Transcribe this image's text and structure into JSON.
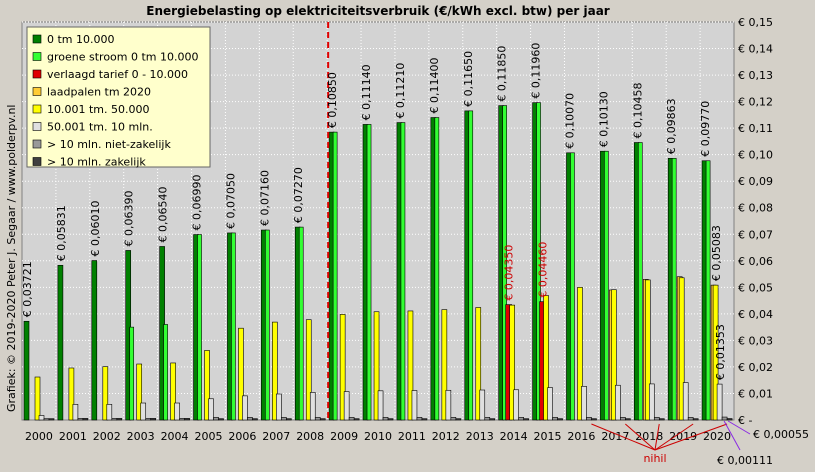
{
  "chart_data": {
    "type": "bar",
    "title": "Energiebelasting  op elektriciteitsverbruik  (€/kWh excl. btw) per jaar",
    "credit": "Grafiek:  © 2019-2020  Peter J. Segaar / www.polderpv.nl",
    "categories": [
      "2000",
      "2001",
      "2002",
      "2003",
      "2004",
      "2005",
      "2006",
      "2007",
      "2008",
      "2009",
      "2010",
      "2011",
      "2012",
      "2013",
      "2014",
      "2015",
      "2016",
      "2017",
      "2018",
      "2019",
      "2020"
    ],
    "y_ticks": [
      "€ -",
      "€ 0,01",
      "€ 0,02",
      "€ 0,03",
      "€ 0,04",
      "€ 0,05",
      "€ 0,06",
      "€ 0,07",
      "€ 0,08",
      "€ 0,09",
      "€ 0,10",
      "€ 0,11",
      "€ 0,12",
      "€ 0,13",
      "€ 0,14",
      "€ 0,15"
    ],
    "ylim": [
      0,
      0.15
    ],
    "grid": true,
    "legend_position": "top-left",
    "marker_year": "2008",
    "series": [
      {
        "name": "0 tm 10.000",
        "color": "#008000",
        "values": [
          0.03721,
          0.05831,
          0.0601,
          0.0639,
          0.0654,
          0.0699,
          0.0705,
          0.0716,
          0.0727,
          0.1085,
          0.1114,
          0.1121,
          0.114,
          0.1165,
          0.1185,
          0.1196,
          0.1007,
          0.1013,
          0.10458,
          0.09863,
          0.0977
        ]
      },
      {
        "name": "groene stroom 0 tm 10.000",
        "color": "#33ff33",
        "values": [
          null,
          null,
          null,
          0.035,
          0.036,
          0.0699,
          0.0705,
          0.0716,
          0.0727,
          0.1085,
          0.1114,
          0.1121,
          0.114,
          0.1165,
          0.1185,
          0.1196,
          0.1007,
          0.1013,
          0.10458,
          0.09863,
          0.0977
        ]
      },
      {
        "name": "verlaagd tarief 0 - 10.000",
        "color": "#e00000",
        "values": [
          null,
          null,
          null,
          null,
          null,
          null,
          null,
          null,
          null,
          null,
          null,
          null,
          null,
          null,
          0.0435,
          0.0446,
          null,
          null,
          null,
          null,
          null
        ]
      },
      {
        "name": "laadpalen tm 2020",
        "color": "#ffcc33",
        "values": [
          null,
          null,
          null,
          null,
          null,
          null,
          null,
          null,
          null,
          null,
          null,
          null,
          null,
          null,
          null,
          null,
          null,
          0.049,
          0.053,
          0.054,
          0.05083
        ]
      },
      {
        "name": "10.001 tm. 50.000",
        "color": "#ffff00",
        "values": [
          0.0162,
          0.0196,
          0.0201,
          0.0211,
          0.0215,
          0.0262,
          0.0346,
          0.0369,
          0.0378,
          0.0398,
          0.0408,
          0.0411,
          0.0416,
          0.0424,
          0.0433,
          0.0469,
          0.05,
          0.0491,
          0.0528,
          0.0536,
          0.05083
        ]
      },
      {
        "name": "50.001 tm. 10 mln.",
        "color": "#e0e0e0",
        "values": [
          0.0017,
          0.0059,
          0.0059,
          0.0064,
          0.0064,
          0.008,
          0.0091,
          0.0098,
          0.0104,
          0.0107,
          0.011,
          0.0111,
          0.0112,
          0.0113,
          0.0114,
          0.0122,
          0.0127,
          0.0131,
          0.0136,
          0.0141,
          0.01353
        ]
      },
      {
        "name": "> 10 mln. niet-zakelijk",
        "color": "#999999",
        "values": [
          0.0005,
          0.0006,
          0.0006,
          0.0006,
          0.0006,
          0.001,
          0.001,
          0.001,
          0.001,
          0.001,
          0.001,
          0.001,
          0.001,
          0.001,
          0.001,
          0.001,
          0.001,
          0.001,
          0.001,
          0.001,
          0.00111
        ]
      },
      {
        "name": "> 10 mln. zakelijk",
        "color": "#404040",
        "values": [
          0.0005,
          0.0006,
          0.0006,
          0.0006,
          0.0006,
          0.0005,
          0.0005,
          0.0005,
          0.0005,
          0.0005,
          0.0005,
          0.0005,
          0.0005,
          0.0005,
          0.0005,
          0.0005,
          0.0005,
          0.0005,
          0.0005,
          0.0005,
          0.00055
        ]
      }
    ],
    "value_labels": [
      {
        "year": "2000",
        "text": "€ 0,03721",
        "color": "#000000"
      },
      {
        "year": "2001",
        "text": "€ 0,05831",
        "color": "#000000"
      },
      {
        "year": "2002",
        "text": "€ 0,06010",
        "color": "#000000"
      },
      {
        "year": "2003",
        "text": "€ 0,06390",
        "color": "#000000"
      },
      {
        "year": "2004",
        "text": "€ 0,06540",
        "color": "#000000"
      },
      {
        "year": "2005",
        "text": "€ 0,06990",
        "color": "#000000"
      },
      {
        "year": "2006",
        "text": "€ 0,07050",
        "color": "#000000"
      },
      {
        "year": "2007",
        "text": "€ 0,07160",
        "color": "#000000"
      },
      {
        "year": "2008",
        "text": "€ 0,07270",
        "color": "#000000"
      },
      {
        "year": "2009",
        "text": "€ 0,10850",
        "color": "#000000"
      },
      {
        "year": "2010",
        "text": "€ 0,11140",
        "color": "#000000"
      },
      {
        "year": "2011",
        "text": "€ 0,11210",
        "color": "#000000"
      },
      {
        "year": "2012",
        "text": "€ 0,11400",
        "color": "#000000"
      },
      {
        "year": "2013",
        "text": "€ 0,11650",
        "color": "#000000"
      },
      {
        "year": "2014",
        "text": "€ 0,11850",
        "color": "#000000"
      },
      {
        "year": "2015",
        "text": "€ 0,11960",
        "color": "#000000"
      },
      {
        "year": "2016",
        "text": "€ 0,10070",
        "color": "#000000"
      },
      {
        "year": "2017",
        "text": "€ 0,10130",
        "color": "#000000"
      },
      {
        "year": "2018",
        "text": "€ 0,10458",
        "color": "#000000"
      },
      {
        "year": "2019",
        "text": "€ 0,09863",
        "color": "#000000"
      },
      {
        "year": "2020",
        "text": "€ 0,09770",
        "color": "#000000"
      },
      {
        "year": "2014",
        "text": "€ 0,04350",
        "color": "#cc0000"
      },
      {
        "year": "2015",
        "text": "€ 0,04460",
        "color": "#cc0000"
      },
      {
        "year": "2020",
        "text": "€ 0,05083",
        "color": "#000000"
      },
      {
        "year": "2020",
        "text": "€ 0,01353",
        "color": "#000000"
      }
    ],
    "annotations": {
      "nihil": "nihil",
      "val_00055": "€ 0,00055",
      "val_00111": "€ 0,00111"
    }
  }
}
